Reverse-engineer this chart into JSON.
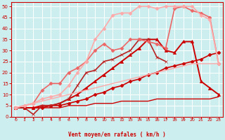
{
  "xlabel": "Vent moyen/en rafales ( km/h )",
  "bg_color": "#cceeee",
  "grid_color": "#aadddd",
  "x_range": [
    -0.5,
    23.5
  ],
  "y_range": [
    0,
    52
  ],
  "x_ticks": [
    0,
    1,
    2,
    3,
    4,
    5,
    6,
    7,
    8,
    9,
    10,
    11,
    12,
    13,
    14,
    15,
    16,
    17,
    18,
    19,
    20,
    21,
    22,
    23
  ],
  "y_ticks": [
    0,
    5,
    10,
    15,
    20,
    25,
    30,
    35,
    40,
    45,
    50
  ],
  "series": [
    {
      "x": [
        0,
        1,
        2,
        3,
        4,
        5,
        6,
        7,
        8,
        9,
        10,
        11,
        12,
        13,
        14,
        15,
        16,
        17,
        18,
        19,
        20,
        21,
        22,
        23
      ],
      "y": [
        4,
        4,
        4,
        4,
        4,
        4,
        5,
        5,
        5,
        6,
        6,
        6,
        7,
        7,
        7,
        7,
        8,
        8,
        8,
        8,
        8,
        8,
        8,
        9
      ],
      "color": "#cc0000",
      "lw": 1.0,
      "marker": null,
      "ms": 0
    },
    {
      "x": [
        0,
        1,
        2,
        3,
        4,
        5,
        6,
        7,
        8,
        9,
        10,
        11,
        12,
        13,
        14,
        15,
        16,
        17,
        18,
        19,
        20,
        21,
        22,
        23
      ],
      "y": [
        4,
        4,
        4,
        4,
        5,
        5,
        6,
        7,
        8,
        10,
        11,
        13,
        14,
        16,
        17,
        19,
        20,
        22,
        23,
        24,
        25,
        26,
        28,
        29
      ],
      "color": "#cc0000",
      "lw": 1.2,
      "marker": "D",
      "ms": 2.5
    },
    {
      "x": [
        0,
        1,
        2,
        3,
        4,
        5,
        6,
        7,
        8,
        9,
        10,
        11,
        12,
        13,
        14,
        15,
        16,
        17,
        18,
        19,
        20,
        21,
        22,
        23
      ],
      "y": [
        4,
        4,
        4,
        5,
        5,
        6,
        8,
        10,
        13,
        16,
        19,
        22,
        25,
        28,
        31,
        35,
        35,
        30,
        29,
        34,
        34,
        16,
        13,
        10
      ],
      "color": "#cc0000",
      "lw": 1.4,
      "marker": "^",
      "ms": 3
    },
    {
      "x": [
        0,
        1,
        2,
        3,
        4,
        5,
        6,
        7,
        8,
        9,
        10,
        11,
        12,
        13,
        14,
        15,
        16,
        17,
        18,
        19,
        20,
        21,
        22,
        23
      ],
      "y": [
        4,
        4,
        1,
        5,
        5,
        6,
        8,
        14,
        20,
        21,
        25,
        26,
        28,
        30,
        35,
        35,
        27,
        25,
        null,
        null,
        null,
        null,
        null,
        null
      ],
      "color": "#bb2222",
      "lw": 1.2,
      "marker": "x",
      "ms": 3.5
    },
    {
      "x": [
        0,
        1,
        2,
        3,
        4,
        5,
        6,
        7,
        8,
        9,
        10,
        11,
        12,
        13,
        14,
        15,
        16,
        17,
        18,
        19,
        20,
        21,
        22,
        23
      ],
      "y": [
        4,
        5,
        6,
        12,
        15,
        15,
        20,
        22,
        25,
        30,
        33,
        30,
        31,
        35,
        35,
        34,
        33,
        31,
        49,
        50,
        48,
        47,
        45,
        24
      ],
      "color": "#ee6666",
      "lw": 1.2,
      "marker": "D",
      "ms": 2.5
    },
    {
      "x": [
        0,
        1,
        2,
        3,
        4,
        5,
        6,
        7,
        8,
        9,
        10,
        11,
        12,
        13,
        14,
        15,
        16,
        17,
        18,
        19,
        20,
        21,
        22,
        23
      ],
      "y": [
        4,
        5,
        6,
        8,
        9,
        10,
        14,
        20,
        25,
        35,
        40,
        46,
        47,
        47,
        50,
        50,
        49,
        50,
        50,
        50,
        50,
        46,
        44,
        24
      ],
      "color": "#ffaaaa",
      "lw": 1.2,
      "marker": "D",
      "ms": 2.5
    },
    {
      "x": [
        0,
        1,
        2,
        3,
        4,
        5,
        6,
        7,
        8,
        9,
        10,
        11,
        12,
        13,
        14,
        15,
        16,
        17,
        18,
        19,
        20,
        21,
        22,
        23
      ],
      "y": [
        4,
        5,
        6,
        7,
        8,
        9,
        10,
        11,
        12,
        13,
        14,
        15,
        16,
        17,
        18,
        19,
        20,
        21,
        22,
        23,
        24,
        24,
        24,
        24
      ],
      "color": "#ffaaaa",
      "lw": 1.0,
      "marker": null,
      "ms": 0
    }
  ],
  "tick_color": "#cc0000",
  "label_color": "#cc0000",
  "axis_color": "#cc0000"
}
